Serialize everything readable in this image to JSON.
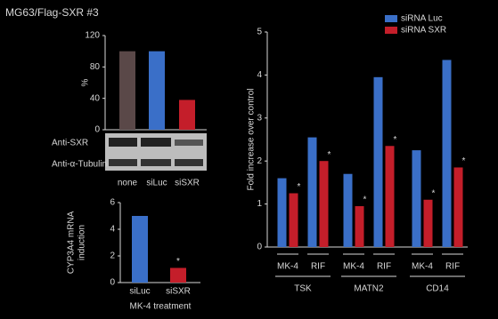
{
  "figure_title": "MG63/Flag-SXR #3",
  "blot": {
    "rows": [
      "Anti-SXR",
      "Anti-α-Tubulin"
    ]
  },
  "chart_data": [
    {
      "type": "bar",
      "ylabel": "%",
      "categories": [
        "none",
        "siLuc",
        "siSXR"
      ],
      "values": [
        100,
        100,
        38
      ],
      "colors": [
        "#5a4848",
        "#3a6fc8",
        "#c41e2a"
      ],
      "ylim": [
        0,
        120
      ],
      "yticks": [
        0,
        40,
        80,
        120
      ]
    },
    {
      "type": "bar",
      "ylabel": [
        "CYP3A4 mRNA",
        "induction"
      ],
      "xlabel": "MK-4 treatment",
      "categories": [
        "siLuc",
        "siSXR"
      ],
      "values": [
        5.0,
        1.1
      ],
      "colors": [
        "#3a6fc8",
        "#c41e2a"
      ],
      "annotations": [
        null,
        "*"
      ],
      "ylim": [
        0,
        6
      ],
      "yticks": [
        0,
        2,
        4,
        6
      ]
    },
    {
      "type": "grouped_bar",
      "ylabel": "Fold increase over control",
      "categories": [
        "MK-4",
        "RIF",
        "MK-4",
        "RIF",
        "MK-4",
        "RIF"
      ],
      "groups": [
        "TSK",
        "MATN2",
        "CD14"
      ],
      "series": [
        {
          "name": "siRNA Luc",
          "color": "#3a6fc8",
          "values": [
            1.6,
            2.55,
            1.7,
            3.95,
            2.25,
            4.35
          ]
        },
        {
          "name": "siRNA SXR",
          "color": "#c41e2a",
          "values": [
            1.25,
            2.0,
            0.95,
            2.35,
            1.1,
            1.85
          ],
          "annotation": "*"
        }
      ],
      "ylim": [
        0,
        5
      ],
      "yticks": [
        0,
        1,
        2,
        3,
        4,
        5
      ]
    }
  ]
}
